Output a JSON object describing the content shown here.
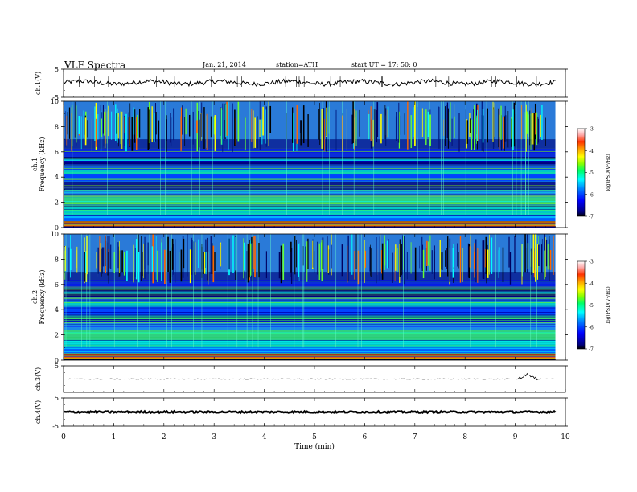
{
  "header": {
    "title": "VLF Spectra",
    "date": "Jan. 21, 2014",
    "station": "station=ATH",
    "start": "start  UT  =   17: 50: 0"
  },
  "chart_data": {
    "type": "heatmap",
    "x": {
      "label": "Time  (min)",
      "range": [
        0,
        10
      ],
      "ticks": [
        "0",
        "1",
        "2",
        "3",
        "4",
        "5",
        "6",
        "7",
        "8",
        "9",
        "10"
      ],
      "data_end": 9.8
    },
    "panels": [
      {
        "kind": "line",
        "ylabel": "ch.1(V)",
        "ylim": [
          -5,
          5
        ],
        "yticks": [
          "5",
          "-5"
        ],
        "baseline": 0.2,
        "note": "broadband waveform around 0 V"
      },
      {
        "kind": "spectrogram",
        "ylabel": "ch.1\nFrequency  (kHz)",
        "ylim": [
          0,
          10
        ],
        "yticks": [
          "0",
          "2",
          "4",
          "6",
          "8",
          "10"
        ]
      },
      {
        "kind": "spectrogram",
        "ylabel": "ch.2\nFrequency  (kHz)",
        "ylim": [
          0,
          10
        ],
        "yticks": [
          "0",
          "2",
          "4",
          "6",
          "8",
          "10"
        ]
      },
      {
        "kind": "line",
        "ylabel": "ch.3(V)",
        "ylim": [
          -5,
          5
        ],
        "yticks": [
          "5"
        ],
        "baseline": 0,
        "bump_at_min": 9.25
      },
      {
        "kind": "line",
        "ylabel": "ch.4(V)",
        "ylim": [
          -5,
          5
        ],
        "yticks": [
          "5",
          "-5"
        ],
        "baseline": 0
      }
    ],
    "colorbar": {
      "label": "log(PSD(V²/Hz)",
      "range": [
        -7,
        -3
      ],
      "ticks": [
        "-3",
        "-4",
        "-5",
        "-6",
        "-7"
      ],
      "colors": [
        "#000000",
        "#000080",
        "#0000ff",
        "#0088ff",
        "#00ffff",
        "#00ff66",
        "#88ff00",
        "#ffff00",
        "#ffaa00",
        "#ff3300",
        "#ffaaaa",
        "#ffffff"
      ]
    }
  }
}
